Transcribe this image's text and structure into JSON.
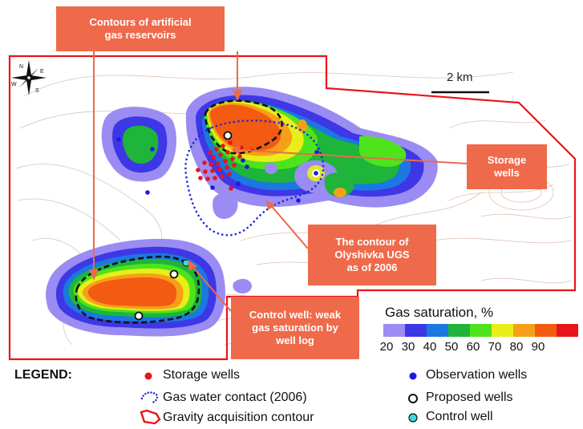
{
  "callouts": {
    "artificial_reservoirs": "Contours of artificial\ngas reservoirs",
    "storage_wells": "Storage\nwells",
    "olyshivka_contour": "The contour of\nOlyshivka UGS\nas of 2006",
    "control_well": "Control well: weak\ngas saturation by\nwell log"
  },
  "scale_bar": {
    "label": "2 km"
  },
  "compass": {
    "n": "N",
    "e": "E",
    "s": "S",
    "w": "W"
  },
  "gas_saturation_scale": {
    "title": "Gas saturation, %",
    "ticks": [
      "20",
      "30",
      "40",
      "50",
      "60",
      "70",
      "80",
      "90"
    ],
    "colors": [
      "#9a8cf2",
      "#3e37e6",
      "#1a78e0",
      "#1eb53a",
      "#4fe31c",
      "#e8ee19",
      "#f6a019",
      "#f35b12",
      "#e8141b"
    ]
  },
  "legend": {
    "title": "LEGEND:",
    "storage_wells": "Storage wells",
    "gas_water_contact": "Gas water contact (2006)",
    "gravity_contour": "Gravity acquisition contour",
    "observation_wells": "Observation wells",
    "proposed_wells": "Proposed wells",
    "control_well": "Control well"
  },
  "colors": {
    "callout_bg": "#ef6a4a",
    "boundary": "#e8141b",
    "storage_well": "#e8141b",
    "observation_well": "#1a1ae0",
    "gas_water_contact": "#1a2ad6",
    "control_well": "#3fd6e0",
    "contour_lines": "#d9b8a6"
  },
  "icons": {
    "compass": "compass-rose-icon",
    "storage_well": "red-dot-icon",
    "observation_well": "blue-dot-icon",
    "proposed_well": "hollow-circle-icon",
    "control_well": "cyan-dot-icon",
    "gas_water_contact": "dotted-blue-line-icon",
    "gravity_contour": "red-outline-icon"
  }
}
